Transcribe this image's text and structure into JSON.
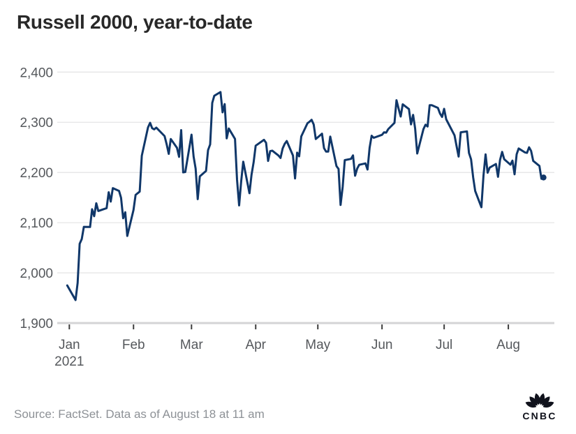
{
  "chart_data": {
    "type": "line",
    "title": "Russell 2000, year-to-date",
    "xlabel": "",
    "ylabel": "",
    "ylim": [
      1900,
      2400
    ],
    "grid": "horizontal-only",
    "legend": "none",
    "line_color": "#103769",
    "grid_color": "#e5e5e6",
    "axis_color": "#d4d4d6",
    "tick_color": "#3d3d3d",
    "label_color": "#55585c",
    "end_marker": true,
    "yticks": [
      {
        "value": 1900,
        "label": "1,900"
      },
      {
        "value": 2000,
        "label": "2,000"
      },
      {
        "value": 2100,
        "label": "2,100"
      },
      {
        "value": 2200,
        "label": "2,200"
      },
      {
        "value": 2300,
        "label": "2,300"
      },
      {
        "value": 2400,
        "label": "2,400"
      }
    ],
    "xticks": [
      {
        "date": "2021-01-01",
        "label": "Jan",
        "sublabel": "2021"
      },
      {
        "date": "2021-02-01",
        "label": "Feb"
      },
      {
        "date": "2021-03-01",
        "label": "Mar"
      },
      {
        "date": "2021-04-01",
        "label": "Apr"
      },
      {
        "date": "2021-05-01",
        "label": "May"
      },
      {
        "date": "2021-06-01",
        "label": "Jun"
      },
      {
        "date": "2021-07-01",
        "label": "Jul"
      },
      {
        "date": "2021-08-01",
        "label": "Aug"
      }
    ],
    "series": [
      {
        "name": "Russell 2000",
        "points": [
          [
            "2020-12-31",
            1974.9
          ],
          [
            "2021-01-04",
            1945.9
          ],
          [
            "2021-01-05",
            1980.0
          ],
          [
            "2021-01-06",
            2057.9
          ],
          [
            "2021-01-07",
            2067.3
          ],
          [
            "2021-01-08",
            2091.7
          ],
          [
            "2021-01-11",
            2091.4
          ],
          [
            "2021-01-12",
            2126.7
          ],
          [
            "2021-01-13",
            2113.0
          ],
          [
            "2021-01-14",
            2138.7
          ],
          [
            "2021-01-15",
            2123.2
          ],
          [
            "2021-01-19",
            2129.0
          ],
          [
            "2021-01-20",
            2160.6
          ],
          [
            "2021-01-21",
            2142.0
          ],
          [
            "2021-01-22",
            2168.8
          ],
          [
            "2021-01-25",
            2163.3
          ],
          [
            "2021-01-26",
            2149.4
          ],
          [
            "2021-01-27",
            2108.9
          ],
          [
            "2021-01-28",
            2120.8
          ],
          [
            "2021-01-29",
            2073.6
          ],
          [
            "2021-02-01",
            2125.2
          ],
          [
            "2021-02-02",
            2155.2
          ],
          [
            "2021-02-03",
            2158.7
          ],
          [
            "2021-02-04",
            2161.9
          ],
          [
            "2021-02-05",
            2233.3
          ],
          [
            "2021-02-08",
            2289.8
          ],
          [
            "2021-02-09",
            2299.0
          ],
          [
            "2021-02-10",
            2288.3
          ],
          [
            "2021-02-11",
            2285.9
          ],
          [
            "2021-02-12",
            2289.4
          ],
          [
            "2021-02-16",
            2272.5
          ],
          [
            "2021-02-17",
            2256.1
          ],
          [
            "2021-02-18",
            2237.1
          ],
          [
            "2021-02-19",
            2266.7
          ],
          [
            "2021-02-22",
            2249.0
          ],
          [
            "2021-02-23",
            2231.1
          ],
          [
            "2021-02-24",
            2284.4
          ],
          [
            "2021-02-25",
            2200.2
          ],
          [
            "2021-02-26",
            2201.0
          ],
          [
            "2021-03-01",
            2275.3
          ],
          [
            "2021-03-02",
            2231.6
          ],
          [
            "2021-03-03",
            2207.8
          ],
          [
            "2021-03-04",
            2146.9
          ],
          [
            "2021-03-05",
            2192.2
          ],
          [
            "2021-03-08",
            2203.0
          ],
          [
            "2021-03-09",
            2244.6
          ],
          [
            "2021-03-10",
            2255.9
          ],
          [
            "2021-03-11",
            2338.5
          ],
          [
            "2021-03-12",
            2352.8
          ],
          [
            "2021-03-15",
            2360.2
          ],
          [
            "2021-03-16",
            2319.8
          ],
          [
            "2021-03-17",
            2336.2
          ],
          [
            "2021-03-18",
            2268.0
          ],
          [
            "2021-03-19",
            2287.6
          ],
          [
            "2021-03-22",
            2266.8
          ],
          [
            "2021-03-23",
            2185.7
          ],
          [
            "2021-03-24",
            2134.3
          ],
          [
            "2021-03-25",
            2183.1
          ],
          [
            "2021-03-26",
            2221.5
          ],
          [
            "2021-03-29",
            2158.7
          ],
          [
            "2021-03-30",
            2195.8
          ],
          [
            "2021-03-31",
            2220.5
          ],
          [
            "2021-04-01",
            2253.4
          ],
          [
            "2021-04-05",
            2265.0
          ],
          [
            "2021-04-06",
            2259.0
          ],
          [
            "2021-04-07",
            2223.1
          ],
          [
            "2021-04-08",
            2242.5
          ],
          [
            "2021-04-09",
            2243.5
          ],
          [
            "2021-04-12",
            2233.8
          ],
          [
            "2021-04-13",
            2228.9
          ],
          [
            "2021-04-14",
            2247.7
          ],
          [
            "2021-04-15",
            2257.1
          ],
          [
            "2021-04-16",
            2262.7
          ],
          [
            "2021-04-19",
            2233.8
          ],
          [
            "2021-04-20",
            2188.2
          ],
          [
            "2021-04-21",
            2239.6
          ],
          [
            "2021-04-22",
            2232.1
          ],
          [
            "2021-04-23",
            2271.9
          ],
          [
            "2021-04-26",
            2298.1
          ],
          [
            "2021-04-27",
            2301.2
          ],
          [
            "2021-04-28",
            2304.9
          ],
          [
            "2021-04-29",
            2295.6
          ],
          [
            "2021-04-30",
            2266.5
          ],
          [
            "2021-05-03",
            2277.2
          ],
          [
            "2021-05-04",
            2248.3
          ],
          [
            "2021-05-05",
            2241.6
          ],
          [
            "2021-05-06",
            2241.5
          ],
          [
            "2021-05-07",
            2271.6
          ],
          [
            "2021-05-10",
            2212.7
          ],
          [
            "2021-05-11",
            2207.0
          ],
          [
            "2021-05-12",
            2135.3
          ],
          [
            "2021-05-13",
            2171.0
          ],
          [
            "2021-05-14",
            2224.6
          ],
          [
            "2021-05-17",
            2227.1
          ],
          [
            "2021-05-18",
            2234.0
          ],
          [
            "2021-05-19",
            2193.6
          ],
          [
            "2021-05-20",
            2207.8
          ],
          [
            "2021-05-21",
            2215.3
          ],
          [
            "2021-05-24",
            2218.0
          ],
          [
            "2021-05-25",
            2205.8
          ],
          [
            "2021-05-26",
            2249.3
          ],
          [
            "2021-05-27",
            2273.2
          ],
          [
            "2021-05-28",
            2269.0
          ],
          [
            "2021-06-01",
            2275.0
          ],
          [
            "2021-06-02",
            2280.0
          ],
          [
            "2021-06-03",
            2279.3
          ],
          [
            "2021-06-04",
            2286.4
          ],
          [
            "2021-06-07",
            2298.8
          ],
          [
            "2021-06-08",
            2344.0
          ],
          [
            "2021-06-09",
            2327.1
          ],
          [
            "2021-06-10",
            2311.4
          ],
          [
            "2021-06-11",
            2335.8
          ],
          [
            "2021-06-14",
            2326.3
          ],
          [
            "2021-06-15",
            2295.7
          ],
          [
            "2021-06-16",
            2314.7
          ],
          [
            "2021-06-17",
            2287.5
          ],
          [
            "2021-06-18",
            2237.8
          ],
          [
            "2021-06-21",
            2286.4
          ],
          [
            "2021-06-22",
            2295.2
          ],
          [
            "2021-06-23",
            2291.6
          ],
          [
            "2021-06-24",
            2334.0
          ],
          [
            "2021-06-25",
            2334.1
          ],
          [
            "2021-06-28",
            2328.7
          ],
          [
            "2021-06-29",
            2317.4
          ],
          [
            "2021-06-30",
            2310.6
          ],
          [
            "2021-07-01",
            2326.7
          ],
          [
            "2021-07-02",
            2305.9
          ],
          [
            "2021-07-06",
            2274.1
          ],
          [
            "2021-07-07",
            2252.8
          ],
          [
            "2021-07-08",
            2231.7
          ],
          [
            "2021-07-09",
            2280.0
          ],
          [
            "2021-07-12",
            2281.9
          ],
          [
            "2021-07-13",
            2238.9
          ],
          [
            "2021-07-14",
            2226.3
          ],
          [
            "2021-07-15",
            2190.3
          ],
          [
            "2021-07-16",
            2163.2
          ],
          [
            "2021-07-19",
            2130.7
          ],
          [
            "2021-07-20",
            2194.0
          ],
          [
            "2021-07-21",
            2236.0
          ],
          [
            "2021-07-22",
            2199.5
          ],
          [
            "2021-07-23",
            2209.7
          ],
          [
            "2021-07-26",
            2216.9
          ],
          [
            "2021-07-27",
            2191.4
          ],
          [
            "2021-07-28",
            2225.0
          ],
          [
            "2021-07-29",
            2241.0
          ],
          [
            "2021-07-30",
            2226.3
          ],
          [
            "2021-08-02",
            2215.5
          ],
          [
            "2021-08-03",
            2223.6
          ],
          [
            "2021-08-04",
            2196.3
          ],
          [
            "2021-08-05",
            2236.3
          ],
          [
            "2021-08-06",
            2247.8
          ],
          [
            "2021-08-09",
            2240.0
          ],
          [
            "2021-08-10",
            2239.1
          ],
          [
            "2021-08-11",
            2250.1
          ],
          [
            "2021-08-12",
            2242.9
          ],
          [
            "2021-08-13",
            2223.1
          ],
          [
            "2021-08-16",
            2213.0
          ],
          [
            "2021-08-17",
            2187.4
          ],
          [
            "2021-08-18",
            2190.0
          ]
        ]
      }
    ]
  },
  "footer": {
    "source": "Source: FactSet. Data as of August 18 at 11 am",
    "logo_text": "CNBC",
    "logo_color": "#10121c"
  }
}
